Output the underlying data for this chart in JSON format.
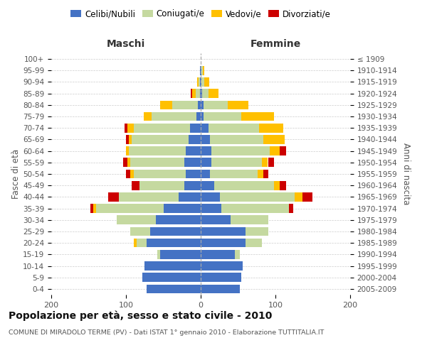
{
  "age_groups": [
    "0-4",
    "5-9",
    "10-14",
    "15-19",
    "20-24",
    "25-29",
    "30-34",
    "35-39",
    "40-44",
    "45-49",
    "50-54",
    "55-59",
    "60-64",
    "65-69",
    "70-74",
    "75-79",
    "80-84",
    "85-89",
    "90-94",
    "95-99",
    "100+"
  ],
  "birth_years": [
    "2005-2009",
    "2000-2004",
    "1995-1999",
    "1990-1994",
    "1985-1989",
    "1980-1984",
    "1975-1979",
    "1970-1974",
    "1965-1969",
    "1960-1964",
    "1955-1959",
    "1950-1954",
    "1945-1949",
    "1940-1944",
    "1935-1939",
    "1930-1934",
    "1925-1929",
    "1920-1924",
    "1915-1919",
    "1910-1914",
    "≤ 1909"
  ],
  "males": {
    "celibi": [
      72,
      78,
      75,
      54,
      72,
      68,
      60,
      50,
      30,
      22,
      20,
      22,
      20,
      16,
      14,
      6,
      4,
      1,
      1,
      1,
      0
    ],
    "coniugati": [
      0,
      0,
      0,
      4,
      14,
      26,
      52,
      90,
      80,
      60,
      70,
      72,
      76,
      76,
      76,
      60,
      34,
      6,
      2,
      0,
      0
    ],
    "vedovi": [
      0,
      0,
      0,
      0,
      4,
      0,
      0,
      4,
      0,
      0,
      4,
      4,
      4,
      4,
      8,
      10,
      16,
      4,
      2,
      0,
      0
    ],
    "divorziati": [
      0,
      0,
      0,
      0,
      0,
      0,
      0,
      4,
      14,
      10,
      6,
      6,
      0,
      4,
      4,
      0,
      0,
      2,
      0,
      0,
      0
    ]
  },
  "females": {
    "nubili": [
      52,
      54,
      56,
      46,
      60,
      60,
      40,
      28,
      26,
      18,
      12,
      14,
      14,
      12,
      10,
      4,
      4,
      2,
      1,
      1,
      0
    ],
    "coniugate": [
      0,
      0,
      0,
      6,
      22,
      30,
      50,
      90,
      100,
      80,
      64,
      68,
      78,
      72,
      68,
      50,
      32,
      8,
      4,
      2,
      0
    ],
    "vedove": [
      0,
      0,
      0,
      0,
      0,
      0,
      0,
      0,
      10,
      8,
      8,
      8,
      14,
      28,
      32,
      44,
      28,
      14,
      6,
      2,
      0
    ],
    "divorziate": [
      0,
      0,
      0,
      0,
      0,
      0,
      0,
      6,
      14,
      8,
      6,
      8,
      8,
      0,
      0,
      0,
      0,
      0,
      0,
      0,
      0
    ]
  },
  "colors": {
    "celibi": "#4472c4",
    "coniugati": "#c5d9a0",
    "vedovi": "#ffc000",
    "divorziati": "#cc0000"
  },
  "xlim": 200,
  "title": "Popolazione per età, sesso e stato civile - 2010",
  "subtitle": "COMUNE DI MIRADOLO TERME (PV) - Dati ISTAT 1° gennaio 2010 - Elaborazione TUTTITALIA.IT",
  "ylabel_left": "Fasce di età",
  "ylabel_right": "Anni di nascita",
  "label_maschi": "Maschi",
  "label_femmine": "Femmine",
  "legend_labels": [
    "Celibi/Nubili",
    "Coniugati/e",
    "Vedovi/e",
    "Divorziati/e"
  ],
  "background_color": "#ffffff",
  "grid_color": "#cccccc"
}
